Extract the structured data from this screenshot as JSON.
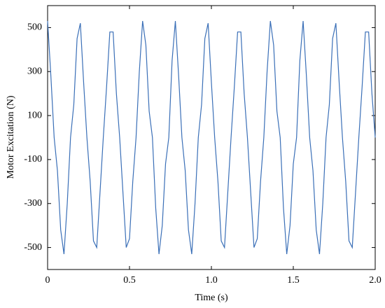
{
  "chart_data": {
    "type": "line",
    "xlabel": "Time (s)",
    "ylabel": "Motor Excitation (N)",
    "x": [
      0,
      0.02,
      0.04,
      0.06,
      0.08,
      0.1,
      0.12,
      0.14,
      0.16,
      0.18,
      0.2,
      0.22,
      0.24,
      0.26,
      0.28,
      0.3,
      0.32,
      0.34,
      0.36,
      0.38,
      0.4,
      0.42,
      0.44,
      0.46,
      0.48,
      0.5,
      0.52,
      0.54,
      0.56,
      0.58,
      0.6,
      0.62,
      0.64,
      0.66,
      0.68,
      0.7,
      0.72,
      0.74,
      0.76,
      0.78,
      0.8,
      0.82,
      0.84,
      0.86,
      0.88,
      0.9,
      0.92,
      0.94,
      0.96,
      0.98,
      1,
      1.02,
      1.04,
      1.06,
      1.08,
      1.1,
      1.12,
      1.14,
      1.16,
      1.18,
      1.2,
      1.22,
      1.24,
      1.26,
      1.28,
      1.3,
      1.32,
      1.34,
      1.36,
      1.38,
      1.4,
      1.42,
      1.44,
      1.46,
      1.48,
      1.5,
      1.52,
      1.54,
      1.56,
      1.58,
      1.6,
      1.62,
      1.64,
      1.66,
      1.68,
      1.7,
      1.72,
      1.74,
      1.76,
      1.78,
      1.8,
      1.82,
      1.84,
      1.86,
      1.88,
      1.9,
      1.92,
      1.94,
      1.96,
      1.98,
      2
    ],
    "series": [
      {
        "color": "#3a6fb7",
        "values": [
          530,
          280,
          0,
          -150,
          -420,
          -530,
          -300,
          0,
          150,
          450,
          520,
          250,
          0,
          -200,
          -470,
          -500,
          -250,
          0,
          230,
          480,
          480,
          200,
          0,
          -250,
          -500,
          -460,
          -200,
          0,
          300,
          530,
          420,
          120,
          0,
          -320,
          -530,
          -400,
          -120,
          0,
          350,
          530,
          280,
          0,
          -150,
          -420,
          -530,
          -300,
          0,
          150,
          450,
          520,
          250,
          0,
          -200,
          -470,
          -500,
          -250,
          0,
          230,
          480,
          480,
          200,
          0,
          -250,
          -500,
          -460,
          -200,
          0,
          300,
          530,
          420,
          120,
          0,
          -320,
          -530,
          -400,
          -120,
          0,
          350,
          530,
          280,
          0,
          -150,
          -420,
          -530,
          -300,
          0,
          150,
          450,
          520,
          250,
          0,
          -200,
          -470,
          -500,
          -250,
          0,
          230,
          480,
          480,
          200,
          0
        ]
      }
    ],
    "xlim": [
      0,
      2
    ],
    "xticks": [
      0,
      0.5,
      {
        "value": 1,
        "label": "1.0"
      },
      1.5,
      {
        "value": 2,
        "label": "2.0"
      }
    ],
    "ylim": [
      -600,
      600
    ],
    "yticks": [
      -500,
      -300,
      -100,
      100,
      300,
      500
    ]
  }
}
